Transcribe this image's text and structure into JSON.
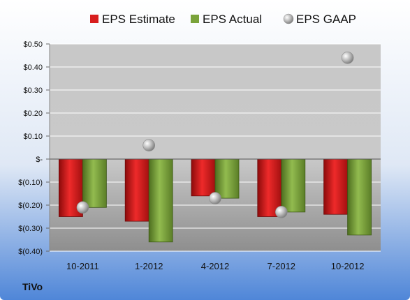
{
  "company": "TiVo",
  "chart_data": {
    "type": "bar",
    "categories": [
      "10-2011",
      "1-2012",
      "4-2012",
      "7-2012",
      "10-2012"
    ],
    "series": [
      {
        "name": "EPS Estimate",
        "type": "bar",
        "color": "#d81e1e",
        "values": [
          -0.25,
          -0.27,
          -0.16,
          -0.25,
          -0.24
        ]
      },
      {
        "name": "EPS Actual",
        "type": "bar",
        "color": "#7aa33a",
        "values": [
          -0.21,
          -0.36,
          -0.17,
          -0.23,
          -0.33
        ]
      },
      {
        "name": "EPS GAAP",
        "type": "scatter",
        "color": "#a8a8a8",
        "values": [
          -0.21,
          0.06,
          -0.17,
          -0.23,
          0.44
        ]
      }
    ],
    "yticks": [
      0.5,
      0.4,
      0.3,
      0.2,
      0.1,
      0,
      -0.1,
      -0.2,
      -0.3,
      -0.4
    ],
    "ytick_labels": [
      "$0.50",
      "$0.40",
      "$0.30",
      "$0.20",
      "$0.10",
      "$-",
      "$(0.10)",
      "$(0.20)",
      "$(0.30)",
      "$(0.40)"
    ],
    "ylim": [
      -0.4,
      0.5
    ],
    "grid": true,
    "legend": "top"
  }
}
